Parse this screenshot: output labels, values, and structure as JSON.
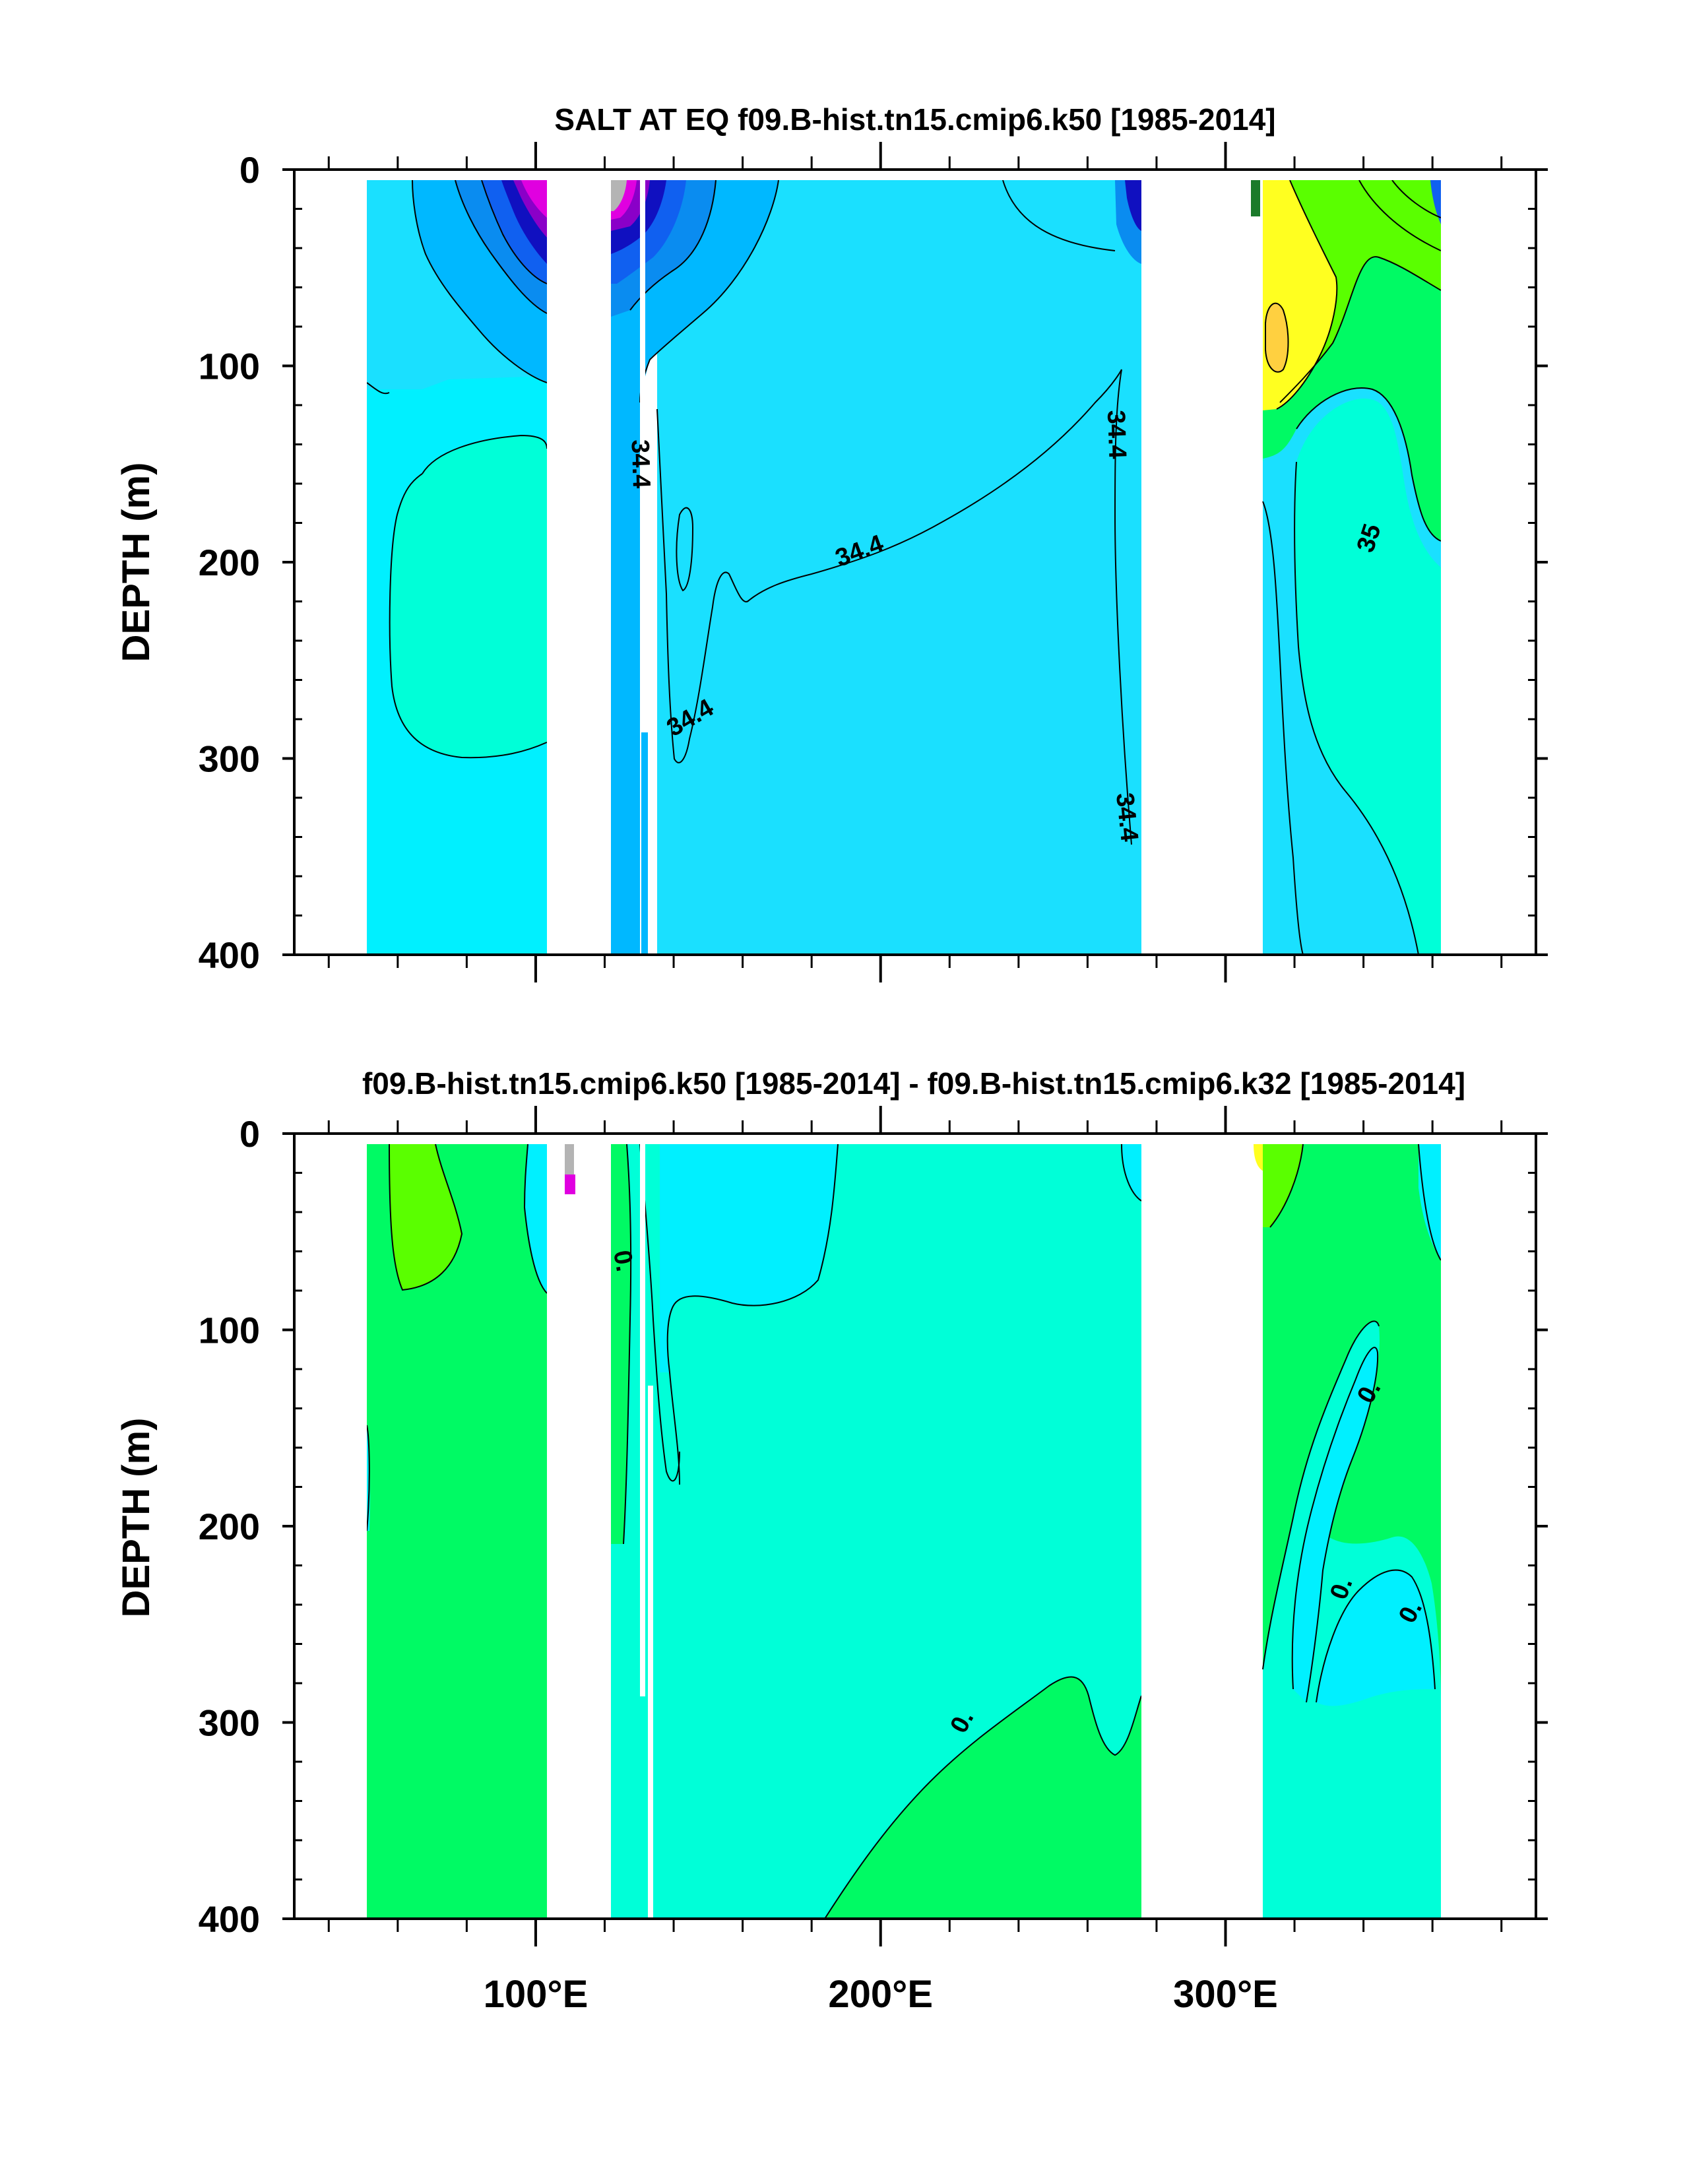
{
  "colors": {
    "magenta": "#e000e0",
    "purple": "#8a00c8",
    "dark_blue": "#1010c0",
    "blue": "#1060f0",
    "medium_blue": "#0a8cf0",
    "sky_blue": "#00b8ff",
    "light_blue": "#1ae0ff",
    "cyan": "#00f0ff",
    "aquamarine": "#00ffd8",
    "spring_green": "#00fa64",
    "lime_green": "#5aff00",
    "yellow": "#ffff20",
    "gold": "#ffd040",
    "gray": "#b4b4b4"
  },
  "chart_data": [
    {
      "type": "heatmap",
      "title": "SALT AT EQ f09.B-hist.tn15.cmip6.k50 [1985-2014]",
      "xlabel": "",
      "ylabel": "DEPTH (m)",
      "xlim": [
        30,
        390
      ],
      "ylim": [
        400,
        0
      ],
      "y_ticks": [
        "0",
        "100",
        "200",
        "300",
        "400"
      ],
      "x_ticks": [
        "",
        "",
        ""
      ],
      "contour_labels": [
        {
          "text": "34.4",
          "lon": 130,
          "depth": 150
        },
        {
          "text": "34.4",
          "lon": 194,
          "depth": 195
        },
        {
          "text": "34.4",
          "lon": 145,
          "depth": 280
        },
        {
          "text": "34.4",
          "lon": 268,
          "depth": 135
        },
        {
          "text": "34.4",
          "lon": 271,
          "depth": 330
        },
        {
          "text": "35",
          "lon": 342,
          "depth": 188
        }
      ]
    },
    {
      "type": "heatmap",
      "title": "f09.B-hist.tn15.cmip6.k50 [1985-2014] - f09.B-hist.tn15.cmip6.k32 [1985-2014]",
      "xlabel": "",
      "ylabel": "DEPTH (m)",
      "xlim": [
        30,
        390
      ],
      "ylim": [
        400,
        0
      ],
      "y_ticks": [
        "0",
        "100",
        "200",
        "300",
        "400"
      ],
      "x_ticks": [
        "100°E",
        "200°E",
        "300°E"
      ],
      "contour_labels": [
        {
          "text": "0.",
          "lon": 125,
          "depth": 65
        },
        {
          "text": "0.",
          "lon": 224,
          "depth": 300
        },
        {
          "text": "0.",
          "lon": 342,
          "depth": 132
        },
        {
          "text": "0.",
          "lon": 334,
          "depth": 232
        },
        {
          "text": "0.",
          "lon": 354,
          "depth": 244
        }
      ]
    }
  ]
}
